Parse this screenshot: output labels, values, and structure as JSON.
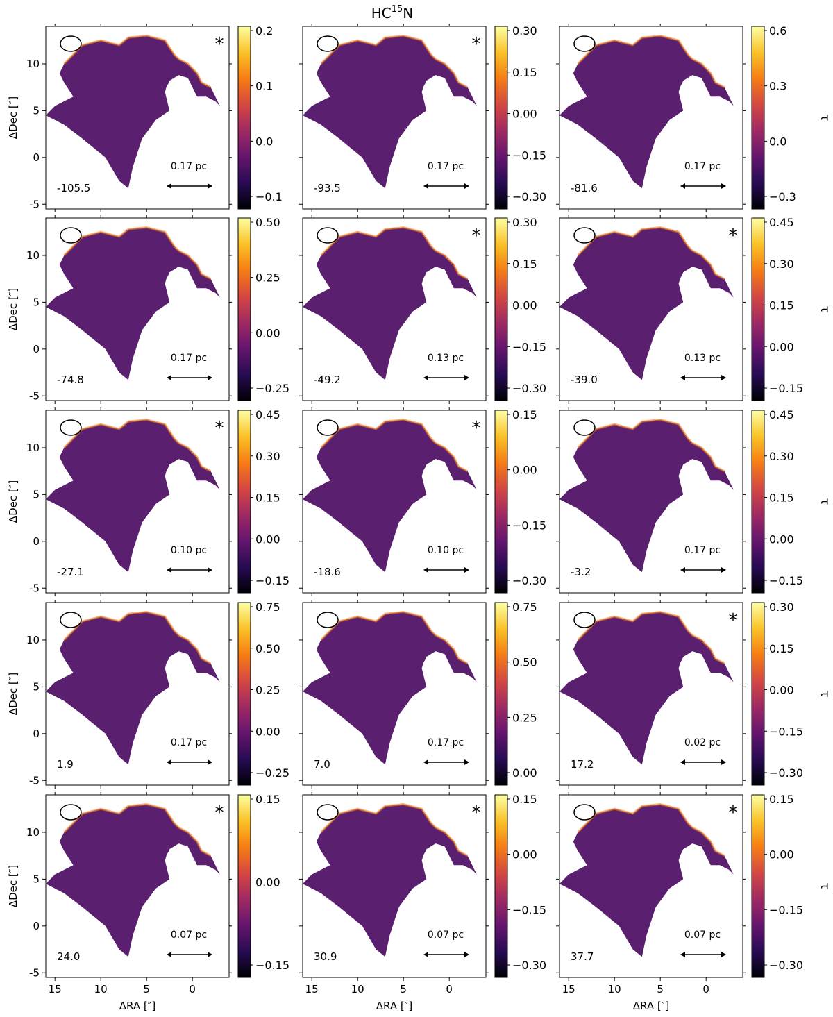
{
  "figure": {
    "title_main": "HC",
    "title_sup": "15",
    "title_tail": "N",
    "ylabel": "ΔDec [″]",
    "xlabel": "ΔRA [″]",
    "colorbar_label": "τ",
    "colormap": [
      "#000004",
      "#280b54",
      "#65156e",
      "#9f2a63",
      "#d44842",
      "#f57d15",
      "#fac228",
      "#fcffa4"
    ],
    "map_fill_color": "#5a1f6e",
    "beam_icon": "ellipse",
    "star_marker": "*"
  },
  "chart_data": {
    "type": "heatmap",
    "grid": {
      "rows": 5,
      "cols": 3
    },
    "x_ticks": [
      15,
      10,
      5,
      0
    ],
    "y_ticks": [
      -5,
      0,
      5,
      10
    ],
    "xlim": [
      16,
      -4
    ],
    "ylim": [
      -5.5,
      14
    ],
    "panels": [
      {
        "velocity": "-105.5",
        "scale": "0.17 pc",
        "star": true,
        "cticks": [
          "0.2",
          "0.1",
          "0.0",
          "−0.1"
        ]
      },
      {
        "velocity": "-93.5",
        "scale": "0.17 pc",
        "star": true,
        "cticks": [
          "0.30",
          "0.15",
          "0.00",
          "−0.15",
          "−0.30"
        ]
      },
      {
        "velocity": "-81.6",
        "scale": "0.17 pc",
        "star": false,
        "cticks": [
          "0.6",
          "0.3",
          "0.0",
          "−0.3"
        ]
      },
      {
        "velocity": "-74.8",
        "scale": "0.17 pc",
        "star": false,
        "cticks": [
          "0.50",
          "0.25",
          "0.00",
          "−0.25"
        ]
      },
      {
        "velocity": "-49.2",
        "scale": "0.13 pc",
        "star": true,
        "cticks": [
          "0.30",
          "0.15",
          "0.00",
          "−0.15",
          "−0.30"
        ]
      },
      {
        "velocity": "-39.0",
        "scale": "0.13 pc",
        "star": true,
        "cticks": [
          "0.45",
          "0.30",
          "0.15",
          "0.00",
          "−0.15"
        ]
      },
      {
        "velocity": "-27.1",
        "scale": "0.10 pc",
        "star": true,
        "cticks": [
          "0.45",
          "0.30",
          "0.15",
          "0.00",
          "−0.15"
        ]
      },
      {
        "velocity": "-18.6",
        "scale": "0.10 pc",
        "star": true,
        "cticks": [
          "0.15",
          "0.00",
          "−0.15",
          "−0.30"
        ]
      },
      {
        "velocity": "-3.2",
        "scale": "0.17 pc",
        "star": false,
        "cticks": [
          "0.45",
          "0.30",
          "0.15",
          "0.00",
          "−0.15"
        ]
      },
      {
        "velocity": "1.9",
        "scale": "0.17 pc",
        "star": false,
        "cticks": [
          "0.75",
          "0.50",
          "0.25",
          "0.00",
          "−0.25"
        ]
      },
      {
        "velocity": "7.0",
        "scale": "0.17 pc",
        "star": false,
        "cticks": [
          "0.75",
          "0.50",
          "0.25",
          "0.00"
        ]
      },
      {
        "velocity": "17.2",
        "scale": "0.02 pc",
        "star": true,
        "cticks": [
          "0.30",
          "0.15",
          "0.00",
          "−0.15",
          "−0.30"
        ]
      },
      {
        "velocity": "24.0",
        "scale": "0.07 pc",
        "star": true,
        "cticks": [
          "0.15",
          "0.00",
          "−0.15"
        ]
      },
      {
        "velocity": "30.9",
        "scale": "0.07 pc",
        "star": true,
        "cticks": [
          "0.15",
          "0.00",
          "−0.15",
          "−0.30"
        ]
      },
      {
        "velocity": "37.7",
        "scale": "0.07 pc",
        "star": true,
        "cticks": [
          "0.15",
          "0.00",
          "−0.15",
          "−0.30"
        ]
      }
    ]
  }
}
